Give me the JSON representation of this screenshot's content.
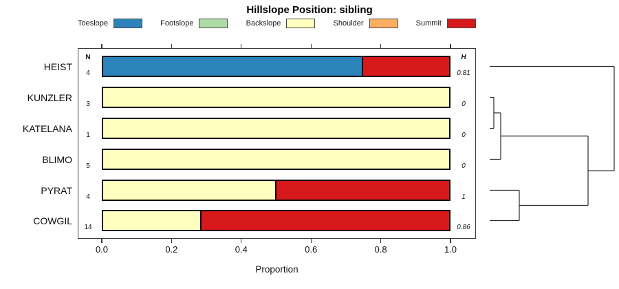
{
  "title": "Hillslope Position: sibling",
  "legend": {
    "items": [
      {
        "label": "Toeslope",
        "color": "#2B83BA"
      },
      {
        "label": "Footslope",
        "color": "#ABDDA4"
      },
      {
        "label": "Backslope",
        "color": "#FFFFBF"
      },
      {
        "label": "Shoulder",
        "color": "#FDAE61"
      },
      {
        "label": "Summit",
        "color": "#D7191C"
      }
    ]
  },
  "columns": {
    "n_header": "N",
    "h_header": "H"
  },
  "rows": [
    {
      "label": "HEIST",
      "n": "4",
      "h": "0.81"
    },
    {
      "label": "KUNZLER",
      "n": "3",
      "h": "0"
    },
    {
      "label": "KATELANA",
      "n": "1",
      "h": "0"
    },
    {
      "label": "BLIMO",
      "n": "5",
      "h": "0"
    },
    {
      "label": "PYRAT",
      "n": "4",
      "h": "1"
    },
    {
      "label": "COWGIL",
      "n": "14",
      "h": "0.86"
    }
  ],
  "axis": {
    "xlabel": "Proportion",
    "ticks": [
      "0.0",
      "0.2",
      "0.4",
      "0.6",
      "0.8",
      "1.0"
    ],
    "tick_values": [
      0,
      0.2,
      0.4,
      0.6,
      0.8,
      1.0
    ]
  },
  "chart_data": [
    {
      "type": "bar",
      "orientation": "horizontal",
      "stacked": true,
      "title": "Hillslope Position: sibling",
      "xlabel": "Proportion",
      "xlim": [
        0,
        1
      ],
      "x_ticks": [
        0,
        0.2,
        0.4,
        0.6,
        0.8,
        1.0
      ],
      "grid": false,
      "legend_position": "top",
      "categories": [
        "HEIST",
        "KUNZLER",
        "KATELANA",
        "BLIMO",
        "PYRAT",
        "COWGIL"
      ],
      "series": [
        {
          "name": "Toeslope",
          "color": "#2B83BA",
          "values": [
            0.75,
            0,
            0,
            0,
            0,
            0
          ]
        },
        {
          "name": "Footslope",
          "color": "#ABDDA4",
          "values": [
            0,
            0,
            0,
            0,
            0,
            0
          ]
        },
        {
          "name": "Backslope",
          "color": "#FFFFBF",
          "values": [
            0,
            1,
            1,
            1,
            0.5,
            0.286
          ]
        },
        {
          "name": "Shoulder",
          "color": "#FDAE61",
          "values": [
            0,
            0,
            0,
            0,
            0,
            0
          ]
        },
        {
          "name": "Summit",
          "color": "#D7191C",
          "values": [
            0.25,
            0,
            0,
            0,
            0.5,
            0.714
          ]
        }
      ],
      "annotations": {
        "N": [
          4,
          3,
          1,
          5,
          4,
          14
        ],
        "H": [
          0.81,
          0,
          0,
          0,
          1,
          0.86
        ]
      }
    },
    {
      "type": "dendrogram",
      "orientation": "leaves-left-root-right",
      "leaves": [
        "HEIST",
        "KUNZLER",
        "KATELANA",
        "BLIMO",
        "PYRAT",
        "COWGIL"
      ],
      "merges": [
        {
          "id": "A",
          "children": [
            "KUNZLER",
            "KATELANA"
          ],
          "height": 0.0331
        },
        {
          "id": "B",
          "children": [
            "A",
            "BLIMO"
          ],
          "height": 0.0884
        },
        {
          "id": "C",
          "children": [
            "PYRAT",
            "COWGIL"
          ],
          "height": 0.2376
        },
        {
          "id": "D",
          "children": [
            "B",
            "C"
          ],
          "height": 0.7901
        },
        {
          "id": "E",
          "children": [
            "HEIST",
            "D"
          ],
          "height": 1.0
        }
      ]
    }
  ]
}
